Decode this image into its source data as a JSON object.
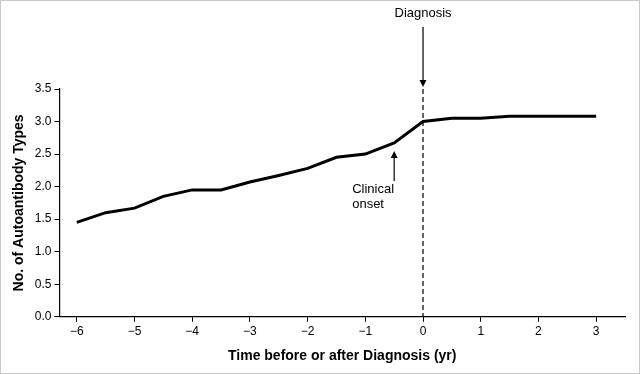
{
  "chart_data": {
    "type": "line",
    "x_label": "Time before or after Diagnosis (yr)",
    "y_label": "No. of Autoantibody Types",
    "x": [
      -6,
      -5.5,
      -5,
      -4.5,
      -4,
      -3.5,
      -3,
      -2.5,
      -2,
      -1.5,
      -1,
      -0.5,
      0,
      0.5,
      1,
      1.5,
      2,
      2.5,
      3
    ],
    "values": [
      1.45,
      1.6,
      1.67,
      1.85,
      1.95,
      1.95,
      2.07,
      2.17,
      2.28,
      2.45,
      2.5,
      2.67,
      3.0,
      3.05,
      3.05,
      3.08,
      3.08,
      3.08,
      3.08
    ],
    "color": "#000000",
    "xlim": [
      -6.3,
      3.5
    ],
    "xticks": [
      {
        "value": -6,
        "label": "−6"
      },
      {
        "value": -5,
        "label": "−5"
      },
      {
        "value": -4,
        "label": "−4"
      },
      {
        "value": -3,
        "label": "−3"
      },
      {
        "value": -2,
        "label": "−2"
      },
      {
        "value": -1,
        "label": "−1"
      },
      0,
      1,
      2,
      3
    ],
    "ylim": [
      0,
      3.5
    ],
    "yticks": [
      {
        "value": 0,
        "label": "0.0"
      },
      {
        "value": 0.5,
        "label": "0.5"
      },
      {
        "value": 1,
        "label": "1.0"
      },
      {
        "value": 1.5,
        "label": "1.5"
      },
      {
        "value": 2,
        "label": "2.0"
      },
      {
        "value": 2.5,
        "label": "2.5"
      },
      {
        "value": 3,
        "label": "3.0"
      },
      {
        "value": 3.5,
        "label": "3.5"
      }
    ],
    "grid": false,
    "annotations": [
      {
        "text": "Diagnosis",
        "x": 0
      },
      {
        "text": "Clinical onset",
        "x": -0.5
      }
    ]
  }
}
